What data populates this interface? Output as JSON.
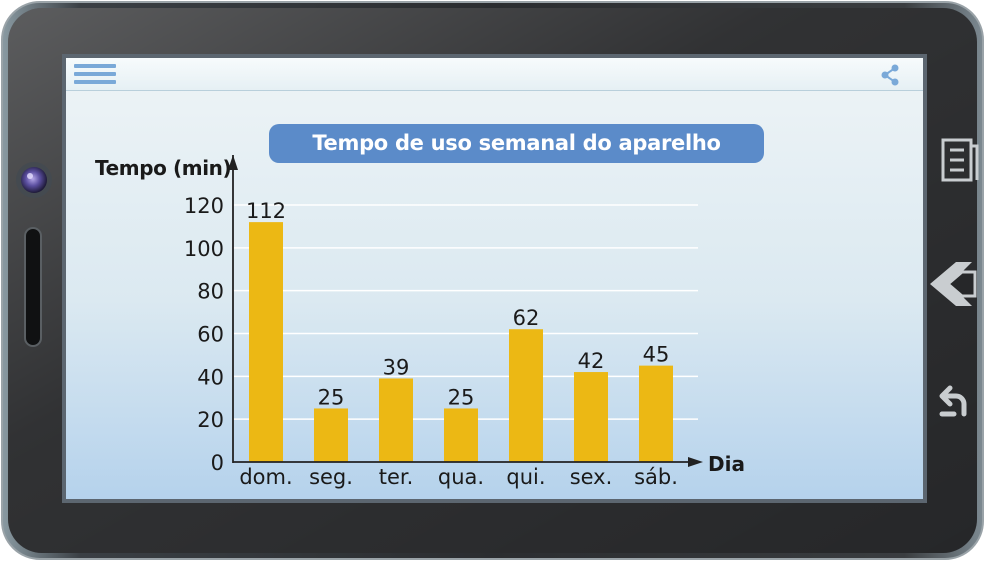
{
  "device": {
    "colors": {
      "body": "#2e2e2e",
      "bezel": "#1a1a1a",
      "accent": "#5b8bc9",
      "bar": "#ecb814"
    },
    "icons": [
      "menu-icon",
      "share-icon",
      "camera-icon",
      "power-slot-icon",
      "menu-key-icon",
      "home-key-icon",
      "back-key-icon"
    ]
  },
  "chart_data": {
    "type": "bar",
    "title": "Tempo de uso semanal do aparelho",
    "xlabel": "Dia",
    "ylabel": "Tempo (min)",
    "categories": [
      "dom.",
      "seg.",
      "ter.",
      "qua.",
      "qui.",
      "sex.",
      "sáb."
    ],
    "values": [
      112,
      25,
      39,
      25,
      62,
      42,
      45
    ],
    "value_labels": [
      "112",
      "25",
      "39",
      "25",
      "62",
      "42",
      "45"
    ],
    "yticks": [
      0,
      20,
      40,
      60,
      80,
      100,
      120
    ],
    "ytick_labels": [
      "0",
      "20",
      "40",
      "60",
      "80",
      "100",
      "120"
    ],
    "ylim": [
      0,
      120
    ],
    "grid": true,
    "bar_color": "#ecb814"
  }
}
